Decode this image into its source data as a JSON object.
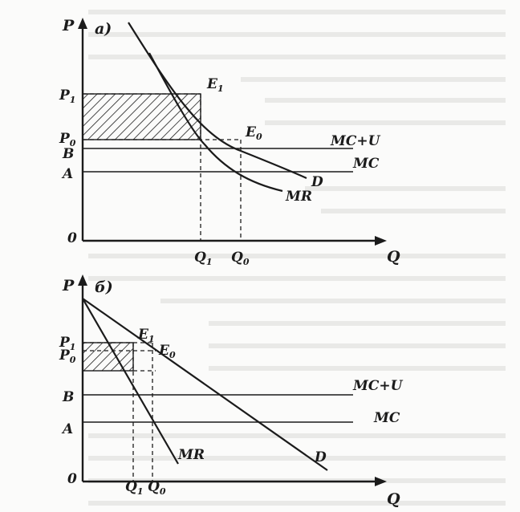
{
  "panel_a": {
    "tag": "а)",
    "axis_y": "P",
    "axis_x": "Q",
    "origin": "0",
    "price_labels": {
      "P1": "P",
      "P1_sub": "1",
      "P0": "P",
      "P0_sub": "0",
      "B": "B",
      "A": "A"
    },
    "quantity_labels": {
      "Q1": "Q",
      "Q1_sub": "1",
      "Q0": "Q",
      "Q0_sub": "0"
    },
    "points": {
      "E1": "E",
      "E1_sub": "1",
      "E0": "E",
      "E0_sub": "0"
    },
    "curves": {
      "mcu": "MC+U",
      "mc": "MC",
      "d": "D",
      "mr": "MR"
    }
  },
  "panel_b": {
    "tag": "б)",
    "axis_y": "P",
    "axis_x": "Q",
    "origin": "0",
    "price_labels": {
      "P1": "P",
      "P1_sub": "1",
      "P0": "P",
      "P0_sub": "0",
      "B": "B",
      "A": "A"
    },
    "quantity_labels": {
      "Q1": "Q",
      "Q1_sub": "1",
      "Q0": "Q",
      "Q0_sub": "0"
    },
    "points": {
      "E1": "E",
      "E1_sub": "1",
      "E0": "E",
      "E0_sub": "0"
    },
    "curves": {
      "mcu": "MC+U",
      "mc": "MC",
      "d": "D",
      "mr": "MR"
    }
  },
  "colors": {
    "ink": "#1b1b1b",
    "paper": "#fbfbfa"
  }
}
